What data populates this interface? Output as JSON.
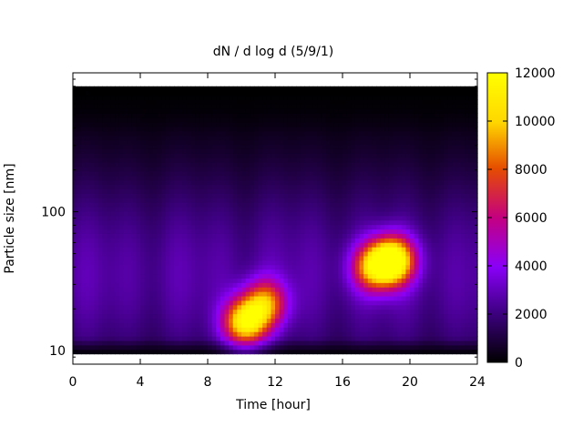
{
  "chart_data": {
    "type": "heatmap",
    "title": "dN / d log d (5/9/1)",
    "xlabel": "Time [hour]",
    "ylabel": "Particle size [nm]",
    "xlim": [
      0,
      24
    ],
    "ylim": [
      8,
      1000
    ],
    "y_scale": "log",
    "x_ticks": [
      0,
      4,
      8,
      12,
      16,
      20,
      24
    ],
    "y_ticks": [
      10,
      100
    ],
    "colorbar": {
      "range": [
        0,
        12000
      ],
      "ticks": [
        0,
        2000,
        4000,
        6000,
        8000,
        10000,
        12000
      ],
      "palette": "gnuplot-pm3d-hot",
      "colors": [
        "#000000",
        "#3d0080",
        "#8a00f8",
        "#c40080",
        "#e64d00",
        "#ffd700",
        "#ffff00"
      ]
    },
    "data_extent": {
      "x": [
        0,
        24
      ],
      "y": [
        9.5,
        800
      ]
    },
    "background_level": 3000,
    "hotspots": [
      {
        "time": 10.2,
        "size": 16,
        "value": 9500
      },
      {
        "time": 11.4,
        "size": 22,
        "value": 6500
      },
      {
        "time": 19.0,
        "size": 45,
        "value": 10500
      },
      {
        "time": 17.8,
        "size": 40,
        "value": 6500
      }
    ],
    "grid": false,
    "legend": "none"
  }
}
